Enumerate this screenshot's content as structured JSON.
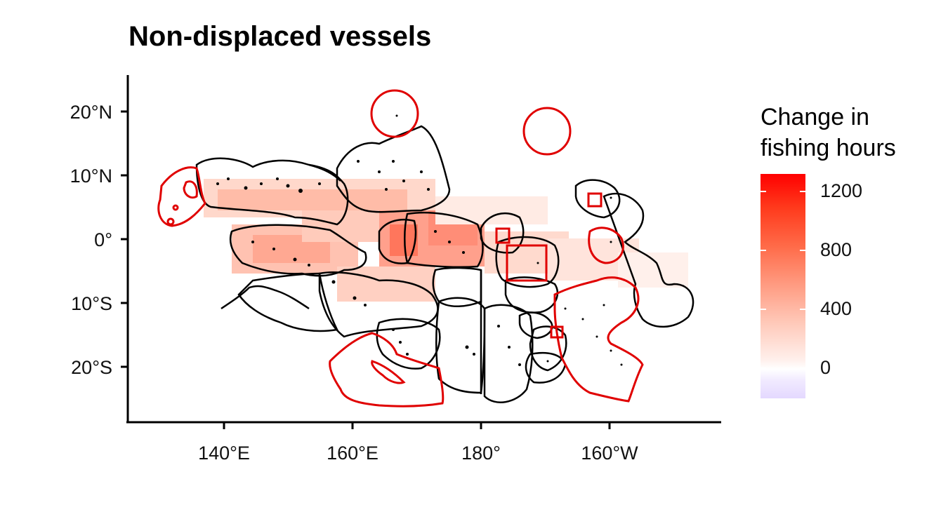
{
  "title": "Non-displaced vessels",
  "map": {
    "x_axis_labels": [
      "140°E",
      "160°E",
      "180°",
      "160°W"
    ],
    "y_axis_labels": [
      "20°N",
      "10°N",
      "0°",
      "10°S",
      "20°S"
    ],
    "projection": "equirectangular, Pacific-centered",
    "extent": {
      "lon": [
        125,
        218
      ],
      "lat": [
        -29,
        26
      ]
    },
    "boundary_colors": {
      "eez": "#000000",
      "mpa": "#e00000"
    }
  },
  "legend": {
    "title_line1": "Change in",
    "title_line2": "fishing hours",
    "ticks": [
      "1200",
      "800",
      "400",
      "0"
    ],
    "colors": {
      "high": "#ff0000",
      "mid": "#ff9a80",
      "zero": "#ffffff",
      "low": "#e4d8ff"
    }
  }
}
